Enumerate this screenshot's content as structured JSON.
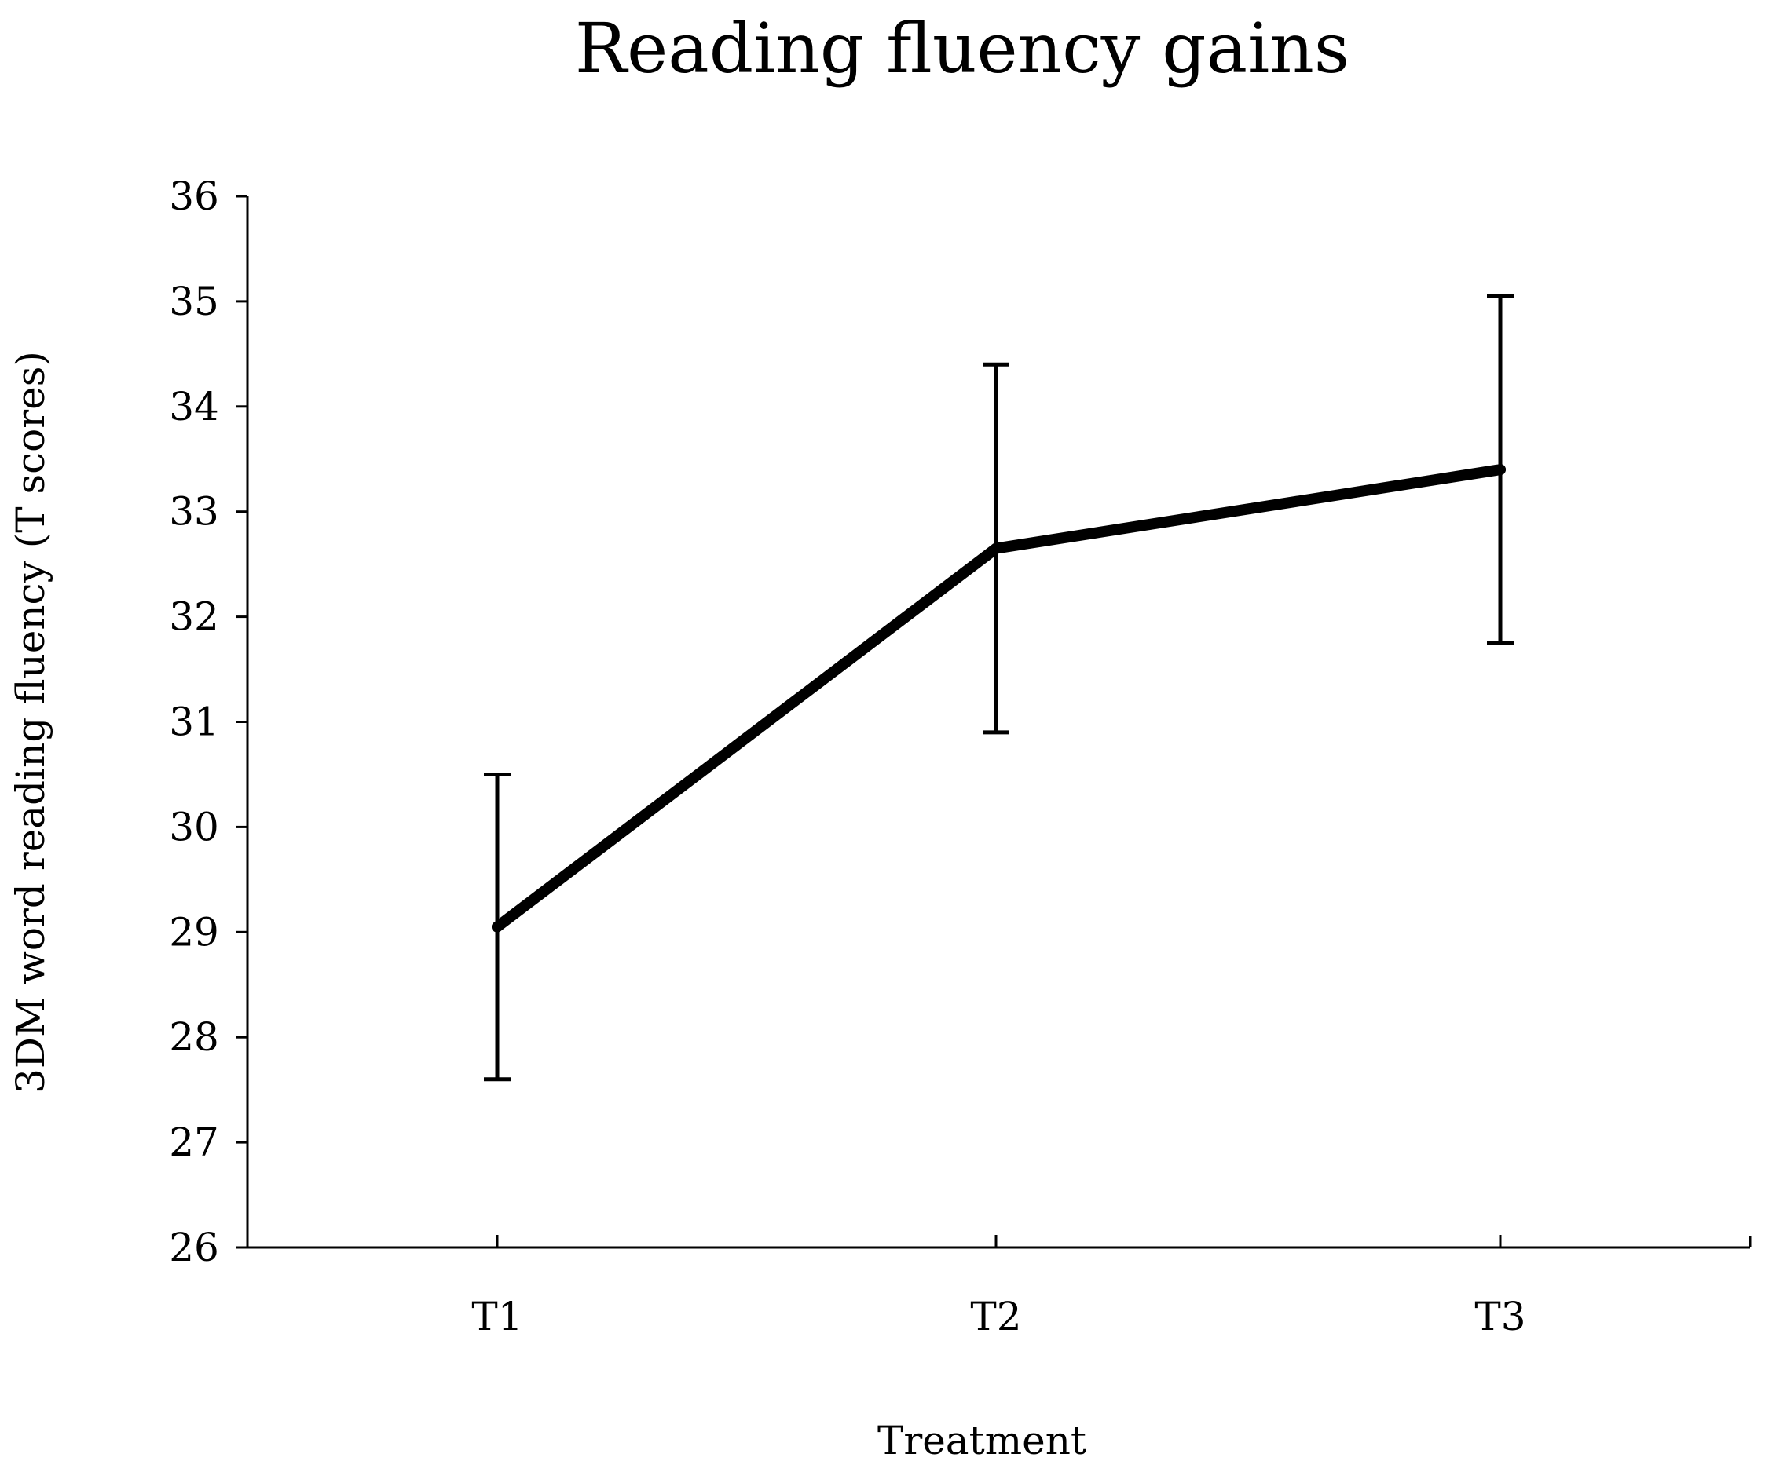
{
  "chart_data": {
    "type": "line",
    "title": "Reading fluency gains",
    "xlabel": "Treatment",
    "ylabel": "3DM word reading fluency (T scores)",
    "categories": [
      "T1",
      "T2",
      "T3"
    ],
    "series": [
      {
        "values": [
          29.05,
          32.65,
          33.4
        ],
        "error_low": [
          27.6,
          30.9,
          31.75
        ],
        "error_high": [
          30.5,
          34.4,
          35.05
        ]
      }
    ],
    "ylim": [
      26,
      36
    ],
    "yticks": [
      26,
      27,
      28,
      29,
      30,
      31,
      32,
      33,
      34,
      35,
      36
    ],
    "grid": false,
    "legend": "none",
    "colors": {
      "line": "#000000",
      "axis": "#000000",
      "background": "#ffffff"
    }
  }
}
